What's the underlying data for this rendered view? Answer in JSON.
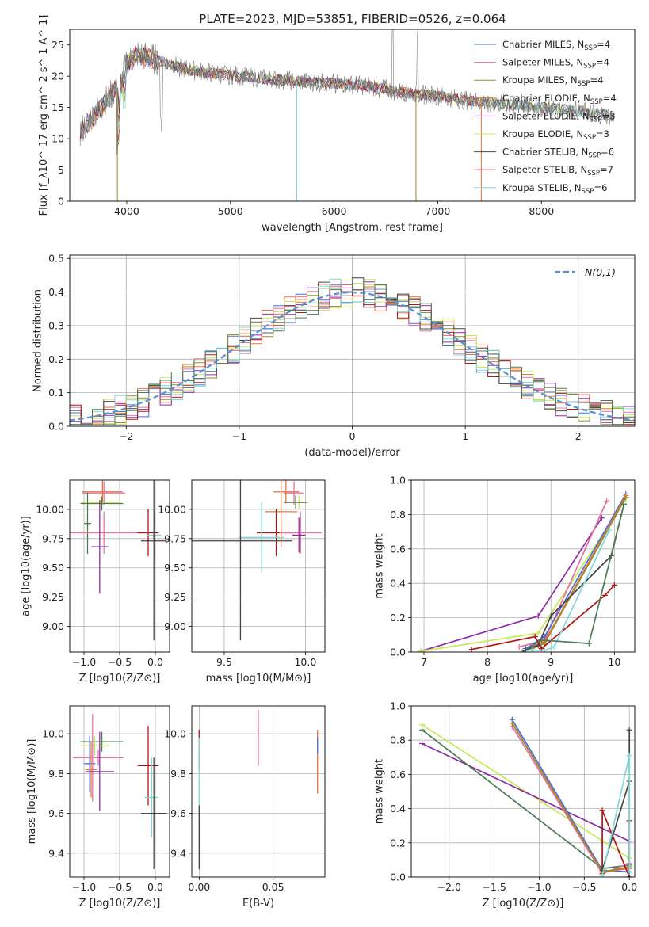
{
  "figure_title": "PLATE=2023, MJD=53851, FIBERID=0526, z=0.064",
  "colors": {
    "Chabrier MILES": "#4a6fd8",
    "Salpeter MILES": "#e6739f",
    "Kroupa MILES": "#9c8a2e",
    "Chabrier ELODIE": "#e8743b",
    "Salpeter ELODIE": "#8e2ca8",
    "Kroupa ELODIE": "#c8e85a",
    "Chabrier STELIB": "#444444",
    "Salpeter STELIB": "#b01515",
    "Kroupa STELIB": "#7ed8dc",
    "Kroupa STELIB dark": "#4d7a55",
    "normal_curve": "#5a8fd0",
    "grid": "#b0b0b0"
  },
  "chart_data": [
    {
      "id": "spectrum",
      "type": "line",
      "xlabel": "wavelength [Angstrom, rest frame]",
      "ylabel": "Flux [f_λ10^-17 erg cm^-2 s^-1 A^-1]",
      "xlim": [
        3450,
        8900
      ],
      "ylim": [
        0,
        27.5
      ],
      "xticks": [
        4000,
        5000,
        6000,
        7000,
        8000
      ],
      "yticks": [
        0,
        5,
        10,
        15,
        20,
        25
      ],
      "grid": false,
      "legend_position": "top-right",
      "legend": [
        {
          "label": "Chabrier MILES",
          "nssp": "4",
          "color": "#4a6fd8"
        },
        {
          "label": "Salpeter MILES",
          "nssp": "4",
          "color": "#e6739f"
        },
        {
          "label": "Kroupa MILES",
          "nssp": "4",
          "color": "#9c8a2e"
        },
        {
          "label": "Chabrier ELODIE",
          "nssp": "4",
          "color": "#e8743b"
        },
        {
          "label": "Salpeter ELODIE",
          "nssp": "3",
          "color": "#8e2ca8"
        },
        {
          "label": "Kroupa ELODIE",
          "nssp": "3",
          "color": "#c8e85a"
        },
        {
          "label": "Chabrier STELIB",
          "nssp": "6",
          "color": "#444444"
        },
        {
          "label": "Salpeter STELIB",
          "nssp": "7",
          "color": "#b01515"
        },
        {
          "label": "Kroupa STELIB",
          "nssp": "6",
          "color": "#7ed8dc"
        }
      ],
      "data_curve": {
        "x": [
          3550,
          3650,
          3750,
          3850,
          3950,
          4000,
          4100,
          4200,
          4400,
          4600,
          4800,
          5000,
          5200,
          5400,
          5600,
          5800,
          6000,
          6200,
          6400,
          6600,
          6800,
          7000,
          7200,
          7400,
          7600,
          7800,
          8000,
          8200,
          8400,
          8600,
          8700
        ],
        "y": [
          11,
          13,
          15,
          17,
          19,
          22,
          23.5,
          23,
          22,
          21,
          20.5,
          20.2,
          19.8,
          19.5,
          19.2,
          19,
          18.8,
          18.6,
          18.3,
          17.5,
          17.2,
          16.8,
          16.3,
          15.9,
          15.6,
          15.3,
          15,
          14.7,
          14.3,
          13.8,
          13.5
        ]
      },
      "model_cutoffs": [
        {
          "model": "Kroupa MILES",
          "x": 3910
        },
        {
          "model": "Kroupa STELIB",
          "x": 5640
        },
        {
          "model": "Kroupa MILES",
          "x": 6790
        },
        {
          "model": "Chabrier ELODIE",
          "x": 7420
        }
      ]
    },
    {
      "id": "residuals",
      "type": "line",
      "xlabel": "(data-model)/error",
      "ylabel": "Normed distribution",
      "xlim": [
        -2.5,
        2.5
      ],
      "ylim": [
        0,
        0.51
      ],
      "xticks": [
        -2,
        -1,
        0,
        1,
        2
      ],
      "yticks": [
        0.0,
        0.1,
        0.2,
        0.3,
        0.4,
        0.5
      ],
      "grid": true,
      "legend_position": "top-right",
      "legend": [
        {
          "label": "N(0,1)",
          "color": "#5a8fd0"
        }
      ],
      "histogram_bin_width": 0.1,
      "series": [
        {
          "name": "Chabrier MILES",
          "color": "#4a6fd8",
          "seed": 1
        },
        {
          "name": "Salpeter MILES",
          "color": "#e6739f",
          "seed": 2
        },
        {
          "name": "Kroupa MILES",
          "color": "#9c8a2e",
          "seed": 3
        },
        {
          "name": "Chabrier ELODIE",
          "color": "#e8743b",
          "seed": 4
        },
        {
          "name": "Salpeter ELODIE",
          "color": "#8e2ca8",
          "seed": 5
        },
        {
          "name": "Kroupa ELODIE",
          "color": "#c8e85a",
          "seed": 6
        },
        {
          "name": "Chabrier STELIB",
          "color": "#444444",
          "seed": 7
        },
        {
          "name": "Salpeter STELIB",
          "color": "#b01515",
          "seed": 8
        },
        {
          "name": "Kroupa STELIB",
          "color": "#7ed8dc",
          "seed": 9
        },
        {
          "name": "Kroupa STELIB",
          "color": "#4d7a55",
          "seed": 10
        }
      ]
    },
    {
      "id": "age_vs_Z",
      "type": "scatter",
      "xlabel": "Z [log10(Z/Z⊙)]",
      "ylabel": "age  [log10(age/yr)]",
      "xlim": [
        -1.2,
        0.2
      ],
      "ylim": [
        8.78,
        10.25
      ],
      "xticks": [
        -1.0,
        -0.5,
        0.0
      ],
      "yticks": [
        9.0,
        9.25,
        9.5,
        9.75,
        10.0
      ],
      "grid": true,
      "points": [
        {
          "x": -0.74,
          "xerr": 0.28,
          "y": 10.15,
          "yerr": 0.1,
          "color": "#e8743b"
        },
        {
          "x": -0.72,
          "xerr": 0.3,
          "y": 10.14,
          "yerr": 0.1,
          "color": "#e6739f"
        },
        {
          "x": -0.76,
          "xerr": 0.28,
          "y": 10.06,
          "yerr": 0.06,
          "color": "#c8e85a"
        },
        {
          "x": -0.75,
          "xerr": 0.3,
          "y": 10.05,
          "yerr": 0.06,
          "color": "#4d7a55"
        },
        {
          "x": -0.95,
          "xerr": 0.05,
          "y": 9.88,
          "yerr": 0.26,
          "color": "#4d7a55"
        },
        {
          "x": -0.72,
          "xerr": 0.55,
          "y": 9.8,
          "yerr": 0.18,
          "color": "#e6739f"
        },
        {
          "x": -0.78,
          "xerr": 0.12,
          "y": 9.68,
          "yerr": 0.4,
          "color": "#8e2ca8"
        },
        {
          "x": -0.1,
          "xerr": 0.15,
          "y": 9.8,
          "yerr": 0.2,
          "color": "#b01515"
        },
        {
          "x": -0.02,
          "xerr": 0.1,
          "y": 9.78,
          "yerr": 0.22,
          "color": "#7ed8dc"
        },
        {
          "x": -0.02,
          "xerr": 0.18,
          "y": 9.73,
          "yerr": 0.85,
          "color": "#444444"
        }
      ]
    },
    {
      "id": "age_vs_mass",
      "type": "scatter",
      "xlabel": "mass [log10(M/M⊙)]",
      "ylabel": "",
      "xlim": [
        9.3,
        10.12
      ],
      "ylim": [
        8.78,
        10.25
      ],
      "xticks": [
        9.5,
        10.0
      ],
      "yticks": [
        9.0,
        9.25,
        9.5,
        9.75,
        10.0
      ],
      "grid": true,
      "points": [
        {
          "x": 9.88,
          "xerr": 0.08,
          "y": 10.15,
          "yerr": 0.1,
          "color": "#e8743b"
        },
        {
          "x": 9.93,
          "xerr": 0.06,
          "y": 10.14,
          "yerr": 0.1,
          "color": "#e6739f"
        },
        {
          "x": 9.96,
          "xerr": 0.06,
          "y": 10.06,
          "yerr": 0.06,
          "color": "#c8e85a"
        },
        {
          "x": 9.94,
          "xerr": 0.07,
          "y": 10.06,
          "yerr": 0.06,
          "color": "#4d7a55"
        },
        {
          "x": 9.85,
          "xerr": 0.1,
          "y": 9.98,
          "yerr": 0.3,
          "color": "#e8743b"
        },
        {
          "x": 9.82,
          "xerr": 0.12,
          "y": 9.8,
          "yerr": 0.2,
          "color": "#b01515"
        },
        {
          "x": 9.97,
          "xerr": 0.13,
          "y": 9.8,
          "yerr": 0.18,
          "color": "#e6739f"
        },
        {
          "x": 9.73,
          "xerr": 0.14,
          "y": 9.76,
          "yerr": 0.3,
          "color": "#7ed8dc"
        },
        {
          "x": 9.96,
          "xerr": 0.04,
          "y": 9.78,
          "yerr": 0.15,
          "color": "#8e2ca8"
        },
        {
          "x": 9.6,
          "xerr": 0.32,
          "y": 9.73,
          "yerr": 0.85,
          "color": "#444444"
        }
      ]
    },
    {
      "id": "weight_vs_age",
      "type": "line",
      "xlabel": "age  [log10(age/yr)]",
      "ylabel": "mass weight",
      "xlim": [
        6.8,
        10.32
      ],
      "ylim": [
        0,
        1.0
      ],
      "xticks": [
        7,
        8,
        9,
        10
      ],
      "yticks": [
        0.0,
        0.2,
        0.4,
        0.6,
        0.8,
        1.0
      ],
      "grid": true,
      "series": [
        {
          "name": "Salpeter ELODIE",
          "color": "#8e2ca8",
          "x": [
            6.95,
            8.8,
            9.8
          ],
          "y": [
            0.005,
            0.21,
            0.78
          ]
        },
        {
          "name": "Kroupa ELODIE",
          "color": "#c8e85a",
          "x": [
            6.95,
            8.8,
            10.18
          ],
          "y": [
            0.005,
            0.11,
            0.89
          ]
        },
        {
          "name": "Salpeter MILES",
          "color": "#e6739f",
          "x": [
            8.5,
            8.9,
            9.88
          ],
          "y": [
            0.03,
            0.07,
            0.88
          ]
        },
        {
          "name": "Chabrier MILES",
          "color": "#4a6fd8",
          "x": [
            8.6,
            8.9,
            10.18
          ],
          "y": [
            0.02,
            0.09,
            0.92
          ]
        },
        {
          "name": "Chabrier ELODIE",
          "color": "#e8743b",
          "x": [
            8.7,
            8.9,
            10.18
          ],
          "y": [
            0.03,
            0.06,
            0.91
          ]
        },
        {
          "name": "Kroupa MILES",
          "color": "#9c8a2e",
          "x": [
            8.7,
            8.9,
            10.18
          ],
          "y": [
            0.02,
            0.05,
            0.9
          ]
        },
        {
          "name": "Chabrier STELIB",
          "color": "#444444",
          "x": [
            8.6,
            8.8,
            9.0,
            9.95,
            10.15
          ],
          "y": [
            0.01,
            0.04,
            0.21,
            0.56,
            0.86
          ]
        },
        {
          "name": "Salpeter STELIB",
          "color": "#b01515",
          "x": [
            7.75,
            8.75,
            8.85,
            9.85,
            10.0
          ],
          "y": [
            0.015,
            0.09,
            0.02,
            0.33,
            0.39
          ]
        },
        {
          "name": "Kroupa STELIB",
          "color": "#7ed8dc",
          "x": [
            8.7,
            8.9,
            9.05,
            9.92
          ],
          "y": [
            0.01,
            0.01,
            0.03,
            0.71
          ]
        },
        {
          "name": "Kroupa STELIB dark",
          "color": "#4d7a55",
          "x": [
            8.55,
            8.85,
            9.6,
            10.15
          ],
          "y": [
            0.0,
            0.07,
            0.05,
            0.86
          ]
        }
      ]
    },
    {
      "id": "mass_vs_Z",
      "type": "scatter",
      "xlabel": "Z [log10(Z/Z⊙)]",
      "ylabel": "mass [log10(M/M⊙)]",
      "xlim": [
        -1.2,
        0.2
      ],
      "ylim": [
        9.28,
        10.14
      ],
      "xticks": [
        -1.0,
        -0.5,
        0.0
      ],
      "yticks": [
        9.4,
        9.6,
        9.8,
        10.0
      ],
      "grid": true,
      "points": [
        {
          "x": -0.75,
          "xerr": 0.3,
          "y": 9.96,
          "yerr": 0.05,
          "color": "#4d7a55"
        },
        {
          "x": -0.85,
          "xerr": 0.2,
          "y": 9.94,
          "yerr": 0.05,
          "color": "#c8e85a"
        },
        {
          "x": -0.92,
          "xerr": 0.08,
          "y": 9.85,
          "yerr": 0.14,
          "color": "#4a6fd8"
        },
        {
          "x": -0.88,
          "xerr": 0.1,
          "y": 9.88,
          "yerr": 0.22,
          "color": "#e6739f"
        },
        {
          "x": -0.9,
          "xerr": 0.08,
          "y": 9.82,
          "yerr": 0.14,
          "color": "#e8743b"
        },
        {
          "x": -0.8,
          "xerr": 0.35,
          "y": 9.88,
          "yerr": 0.04,
          "color": "#e6739f"
        },
        {
          "x": -0.78,
          "xerr": 0.2,
          "y": 9.81,
          "yerr": 0.2,
          "color": "#8e2ca8"
        },
        {
          "x": -0.1,
          "xerr": 0.15,
          "y": 9.84,
          "yerr": 0.2,
          "color": "#b01515"
        },
        {
          "x": -0.05,
          "xerr": 0.1,
          "y": 9.68,
          "yerr": 0.2,
          "color": "#7ed8dc"
        },
        {
          "x": -0.02,
          "xerr": 0.18,
          "y": 9.6,
          "yerr": 0.28,
          "color": "#444444"
        }
      ]
    },
    {
      "id": "mass_vs_ebv",
      "type": "scatter",
      "xlabel": "E(B-V)",
      "ylabel": "",
      "xlim": [
        -0.005,
        0.085
      ],
      "ylim": [
        9.28,
        10.14
      ],
      "xticks": [
        0.0,
        0.05
      ],
      "yticks": [
        9.4,
        9.6,
        9.8,
        10.0
      ],
      "grid": true,
      "points": [
        {
          "x": 0.0,
          "xerr": 0.0,
          "y": 9.92,
          "yerr": 0.1,
          "color": "#b01515"
        },
        {
          "x": 0.0,
          "xerr": 0.0,
          "y": 9.7,
          "yerr": 0.28,
          "color": "#7ed8dc"
        },
        {
          "x": 0.0,
          "xerr": 0.0,
          "y": 9.48,
          "yerr": 0.16,
          "color": "#444444"
        },
        {
          "x": 0.04,
          "xerr": 0.0,
          "y": 9.98,
          "yerr": 0.14,
          "color": "#e6739f"
        },
        {
          "x": 0.08,
          "xerr": 0.0,
          "y": 9.86,
          "yerr": 0.16,
          "color": "#e8743b"
        },
        {
          "x": 0.08,
          "xerr": 0.0,
          "y": 9.94,
          "yerr": 0.04,
          "color": "#4a6fd8"
        }
      ]
    },
    {
      "id": "weight_vs_Z",
      "type": "line",
      "xlabel": "Z [log10(Z/Z⊙)]",
      "ylabel": "mass weight",
      "xlim": [
        -2.42,
        0.06
      ],
      "ylim": [
        0,
        1.0
      ],
      "xticks": [
        -2.0,
        -1.5,
        -1.0,
        -0.5,
        0.0
      ],
      "yticks": [
        0.0,
        0.2,
        0.4,
        0.6,
        0.8,
        1.0
      ],
      "grid": true,
      "series": [
        {
          "name": "Kroupa ELODIE",
          "color": "#c8e85a",
          "x": [
            -2.3,
            0.0
          ],
          "y": [
            0.89,
            0.11
          ]
        },
        {
          "name": "Salpeter ELODIE",
          "color": "#8e2ca8",
          "x": [
            -2.3,
            0.0
          ],
          "y": [
            0.78,
            0.21
          ]
        },
        {
          "name": "Kroupa STELIB dark",
          "color": "#4d7a55",
          "x": [
            -2.3,
            -0.3,
            0.0
          ],
          "y": [
            0.86,
            0.05,
            0.07
          ]
        },
        {
          "name": "Chabrier MILES",
          "color": "#4a6fd8",
          "x": [
            -1.3,
            -0.3,
            0.0
          ],
          "y": [
            0.92,
            0.04,
            0.03
          ]
        },
        {
          "name": "Salpeter MILES",
          "color": "#e6739f",
          "x": [
            -1.3,
            -0.3,
            0.0
          ],
          "y": [
            0.88,
            0.02,
            0.08
          ]
        },
        {
          "name": "Chabrier ELODIE",
          "color": "#e8743b",
          "x": [
            -1.3,
            -0.3,
            0.0
          ],
          "y": [
            0.9,
            0.03,
            0.05
          ]
        },
        {
          "name": "Kroupa MILES",
          "color": "#9c8a2e",
          "x": [
            -1.3,
            -0.3,
            0.0
          ],
          "y": [
            0.9,
            0.03,
            0.06
          ]
        },
        {
          "name": "Salpeter STELIB",
          "color": "#b01515",
          "x": [
            -0.3,
            -0.3,
            0.0,
            0.0
          ],
          "y": [
            0.02,
            0.39,
            0.0,
            0.33
          ]
        },
        {
          "name": "Chabrier STELIB",
          "color": "#444444",
          "x": [
            -0.3,
            0.0,
            0.0,
            0.0
          ],
          "y": [
            0.04,
            0.56,
            0.0,
            0.86
          ]
        },
        {
          "name": "Kroupa STELIB",
          "color": "#7ed8dc",
          "x": [
            -0.3,
            0.0,
            0.0
          ],
          "y": [
            0.01,
            0.71,
            0.03
          ]
        }
      ]
    }
  ]
}
